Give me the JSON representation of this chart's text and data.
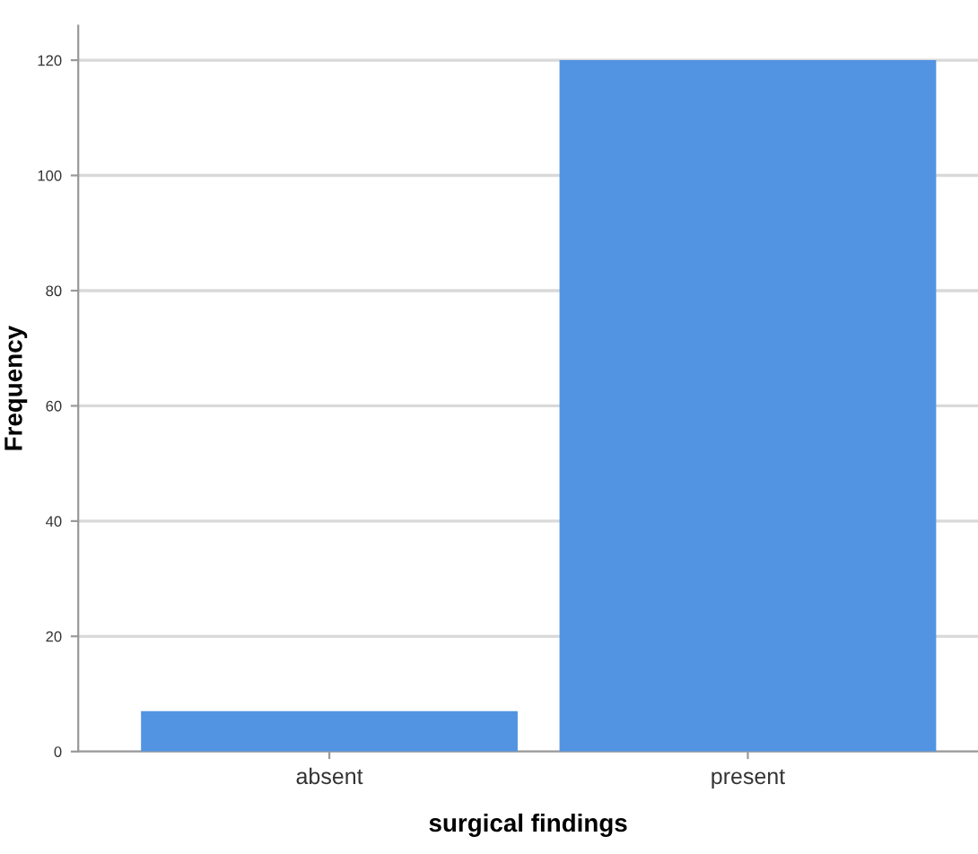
{
  "chart_data": {
    "type": "bar",
    "xlabel": "surgical findings",
    "ylabel": "Frequency",
    "categories": [
      "absent",
      "present"
    ],
    "values": [
      7,
      120
    ],
    "color": "#5294e2",
    "ylim": [
      0,
      126
    ],
    "yticks": [
      0,
      20,
      40,
      60,
      80,
      100,
      120
    ],
    "grid": "y"
  }
}
